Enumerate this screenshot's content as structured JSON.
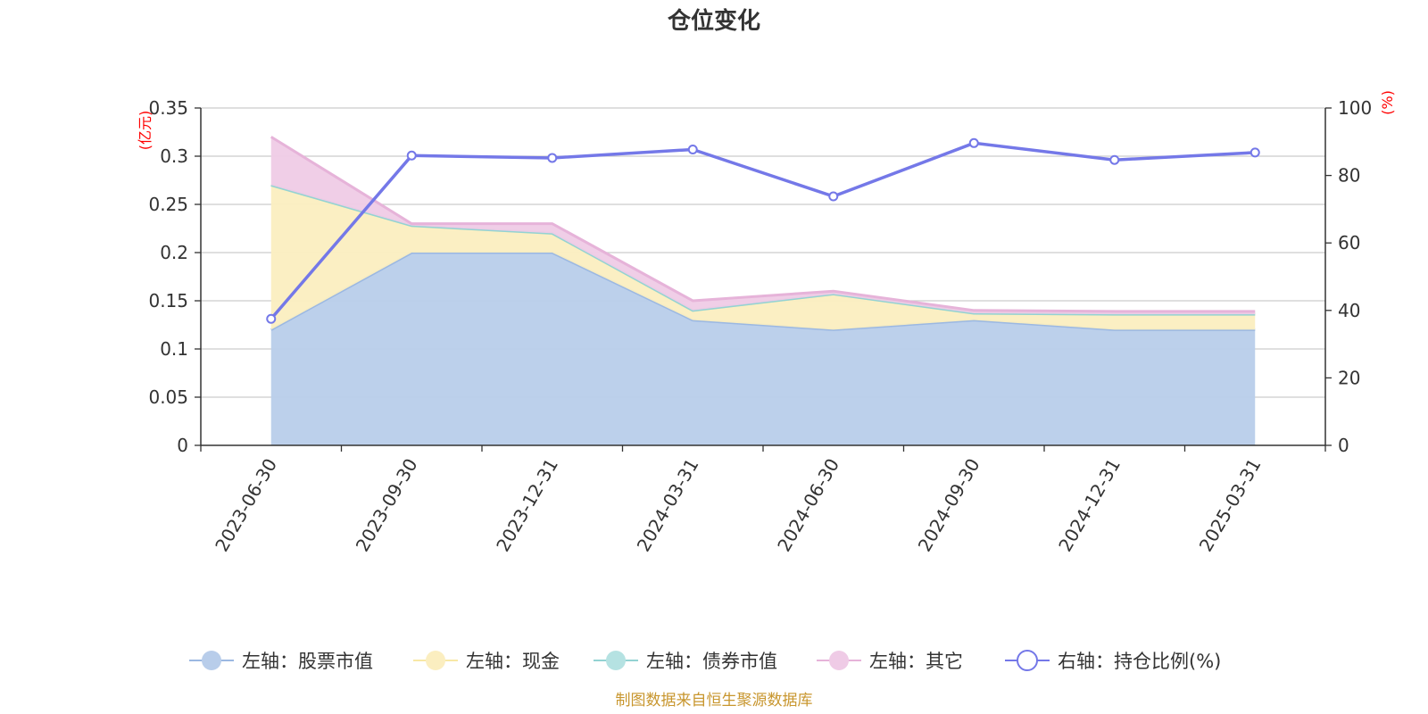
{
  "chart_data": {
    "type": "area",
    "title": "仓位变化",
    "left_axis_unit": "(亿元)",
    "right_axis_unit": "(%)",
    "categories": [
      "2023-06-30",
      "2023-09-30",
      "2023-12-31",
      "2024-03-31",
      "2024-06-30",
      "2024-09-30",
      "2024-12-31",
      "2025-03-31"
    ],
    "left_axis": {
      "min": 0,
      "max": 0.35,
      "ticks": [
        "0",
        "0.05",
        "0.1",
        "0.15",
        "0.2",
        "0.25",
        "0.3",
        "0.35"
      ]
    },
    "right_axis": {
      "min": 0,
      "max": 100,
      "ticks": [
        "0",
        "20",
        "40",
        "60",
        "80",
        "100"
      ]
    },
    "grid": true,
    "legend_position": "bottom",
    "stacked_series": [
      {
        "name": "左轴：股票市值",
        "color": "#9bb8e2",
        "fill": "#b8cdea",
        "values": [
          0.12,
          0.2,
          0.2,
          0.13,
          0.12,
          0.13,
          0.12,
          0.12
        ]
      },
      {
        "name": "左轴：现金",
        "color": "#f8e8a6",
        "fill": "#fbeec0",
        "values": [
          0.15,
          0.028,
          0.02,
          0.01,
          0.037,
          0.007,
          0.016,
          0.016
        ]
      },
      {
        "name": "左轴：债券市值",
        "color": "#93d3d3",
        "fill": "#b5e2e2",
        "values": [
          0,
          0,
          0,
          0,
          0,
          0,
          0,
          0
        ]
      },
      {
        "name": "左轴：其它",
        "color": "#e6b3d9",
        "fill": "#efcbe6",
        "values": [
          0.05,
          0.002,
          0.01,
          0.01,
          0.003,
          0.003,
          0.003,
          0.003
        ]
      }
    ],
    "line_series": {
      "name": "右轴：持仓比例(%)",
      "color": "#7478e8",
      "values": [
        37.5,
        85.9,
        85.2,
        87.7,
        73.8,
        89.6,
        84.6,
        86.8
      ]
    },
    "source": "制图数据来自恒生聚源数据库"
  }
}
